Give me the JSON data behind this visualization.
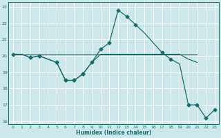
{
  "xlabel": "Humidex (Indice chaleur)",
  "bg_color": "#cce8ea",
  "grid_color": "#ffffff",
  "line_color": "#1a6b6b",
  "xlim": [
    -0.5,
    23.5
  ],
  "ylim": [
    15.8,
    23.3
  ],
  "yticks": [
    16,
    17,
    18,
    19,
    20,
    21,
    22,
    23
  ],
  "xticks": [
    0,
    1,
    2,
    3,
    4,
    5,
    6,
    7,
    8,
    9,
    10,
    11,
    12,
    13,
    14,
    15,
    16,
    17,
    18,
    19,
    20,
    21,
    22,
    23
  ],
  "line1_x": [
    0,
    1,
    2,
    3,
    4,
    5,
    6,
    7,
    8,
    9,
    10,
    11,
    12,
    13,
    14,
    15,
    16,
    17,
    18,
    19,
    20,
    21
  ],
  "line1_y": [
    20.1,
    20.1,
    20.1,
    20.1,
    20.1,
    20.1,
    20.1,
    20.1,
    20.1,
    20.1,
    20.1,
    20.1,
    20.1,
    20.1,
    20.1,
    20.1,
    20.1,
    20.1,
    20.1,
    20.1,
    20.1,
    20.1
  ],
  "line2_x": [
    0,
    1,
    2,
    3,
    4,
    5,
    6,
    7,
    8,
    9,
    10,
    11,
    12,
    13,
    14,
    15,
    16,
    17,
    18,
    19,
    20,
    21,
    22,
    23
  ],
  "line2_y": [
    20.1,
    20.1,
    19.9,
    20.0,
    19.8,
    19.6,
    18.5,
    18.5,
    18.9,
    19.6,
    20.4,
    20.8,
    22.8,
    22.4,
    21.9,
    21.4,
    20.8,
    20.2,
    19.8,
    19.5,
    17.0,
    17.0,
    16.2,
    16.7
  ],
  "line2_marker_x": [
    0,
    2,
    3,
    5,
    6,
    7,
    8,
    9,
    10,
    11,
    12,
    13,
    14,
    17,
    18,
    20,
    21,
    22,
    23
  ],
  "line2_marker_y": [
    20.1,
    19.9,
    20.0,
    19.6,
    18.5,
    18.5,
    18.9,
    19.6,
    20.4,
    20.8,
    22.8,
    22.4,
    21.9,
    20.2,
    19.8,
    17.0,
    17.0,
    16.2,
    16.7
  ],
  "line3_x": [
    0,
    1,
    2,
    3,
    4,
    5,
    6,
    7,
    8,
    9,
    10,
    11,
    12,
    13,
    14,
    15,
    16,
    17,
    18,
    19,
    20,
    21
  ],
  "line3_y": [
    20.1,
    20.1,
    19.9,
    20.0,
    19.8,
    19.6,
    18.5,
    18.5,
    18.9,
    19.6,
    20.1,
    20.1,
    20.1,
    20.1,
    20.1,
    20.1,
    20.1,
    20.1,
    20.1,
    20.1,
    19.8,
    19.6
  ],
  "line3_marker_x": [
    2,
    3,
    5,
    6,
    7,
    8
  ],
  "line3_marker_y": [
    19.9,
    20.0,
    19.6,
    18.5,
    18.5,
    18.9
  ]
}
